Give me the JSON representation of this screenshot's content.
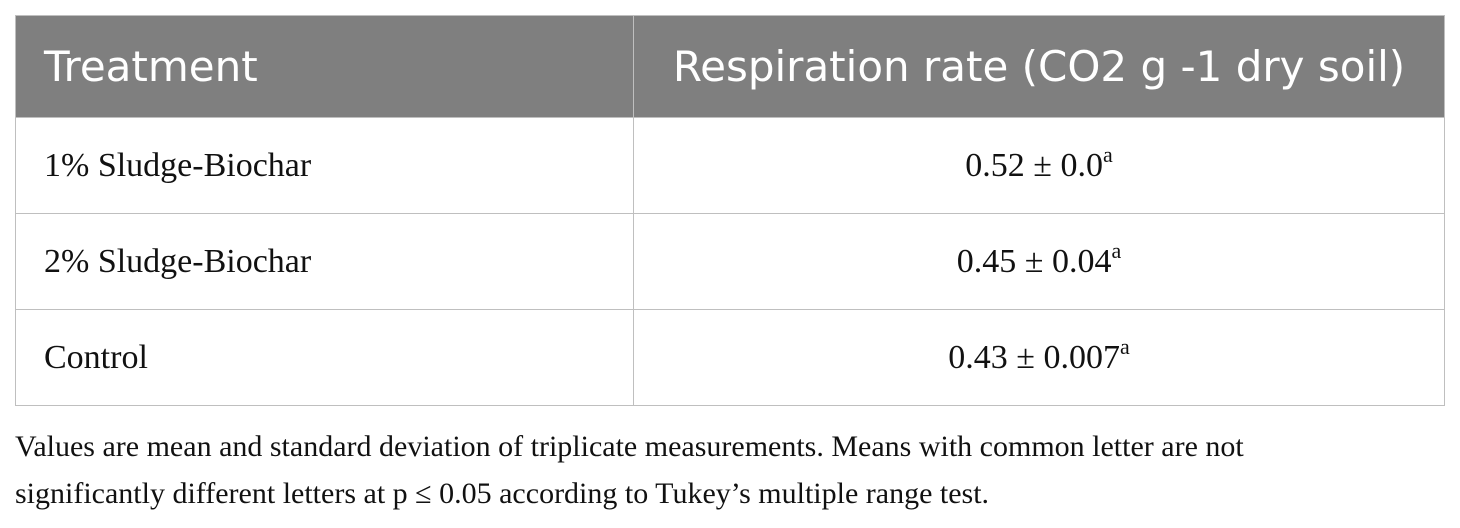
{
  "table": {
    "header": [
      "Treatment",
      "Respiration rate (CO2 g -1 dry soil)"
    ],
    "rows": [
      [
        "1% Sludge-Biochar",
        {
          "value": "0.52 ± 0.0",
          "sup": "a"
        }
      ],
      [
        "2% Sludge-Biochar",
        {
          "value": "0.45 ± 0.04",
          "sup": "a"
        }
      ],
      [
        "Control",
        {
          "value": "0.43 ± 0.007",
          "sup": "a"
        }
      ]
    ]
  },
  "footnote": {
    "lines": [
      "Values are mean and standard deviation of triplicate measurements. Means with common letter are not",
      "significantly different letters at p ≤ 0.05 according to Tukey’s multiple range test."
    ]
  }
}
